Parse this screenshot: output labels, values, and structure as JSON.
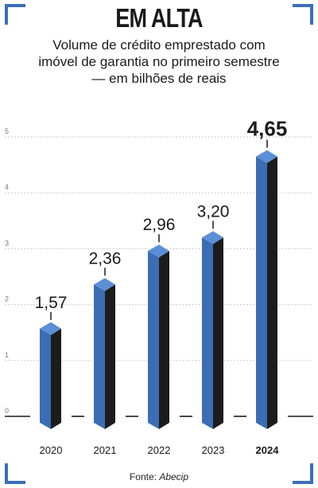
{
  "title": "EM ALTA",
  "subtitle": "Volume de crédito emprestado com imóvel de garantia no primeiro semestre — em bilhões de reais",
  "source_label": "Fonte:",
  "source_name": "Abecip",
  "colors": {
    "bar_front": "#3b6db5",
    "bar_side": "#1c1c1c",
    "bar_top": "#5b8fd6",
    "frame": "#3a6fb8",
    "grid": "#bdbdbd"
  },
  "chart_data": {
    "type": "bar",
    "title": "EM ALTA",
    "subtitle": "Volume de crédito emprestado com imóvel de garantia no primeiro semestre — em bilhões de reais",
    "categories": [
      "2020",
      "2021",
      "2022",
      "2023",
      "2024"
    ],
    "values": [
      1.57,
      2.36,
      2.96,
      3.2,
      4.65
    ],
    "value_labels": [
      "1,57",
      "2,36",
      "2,96",
      "3,20",
      "4,65"
    ],
    "highlight": "2024",
    "yticks": [
      "0",
      "1",
      "2",
      "3",
      "4",
      "5"
    ],
    "ylim": [
      0,
      5
    ],
    "grid": true,
    "xlabel": "",
    "ylabel": ""
  }
}
